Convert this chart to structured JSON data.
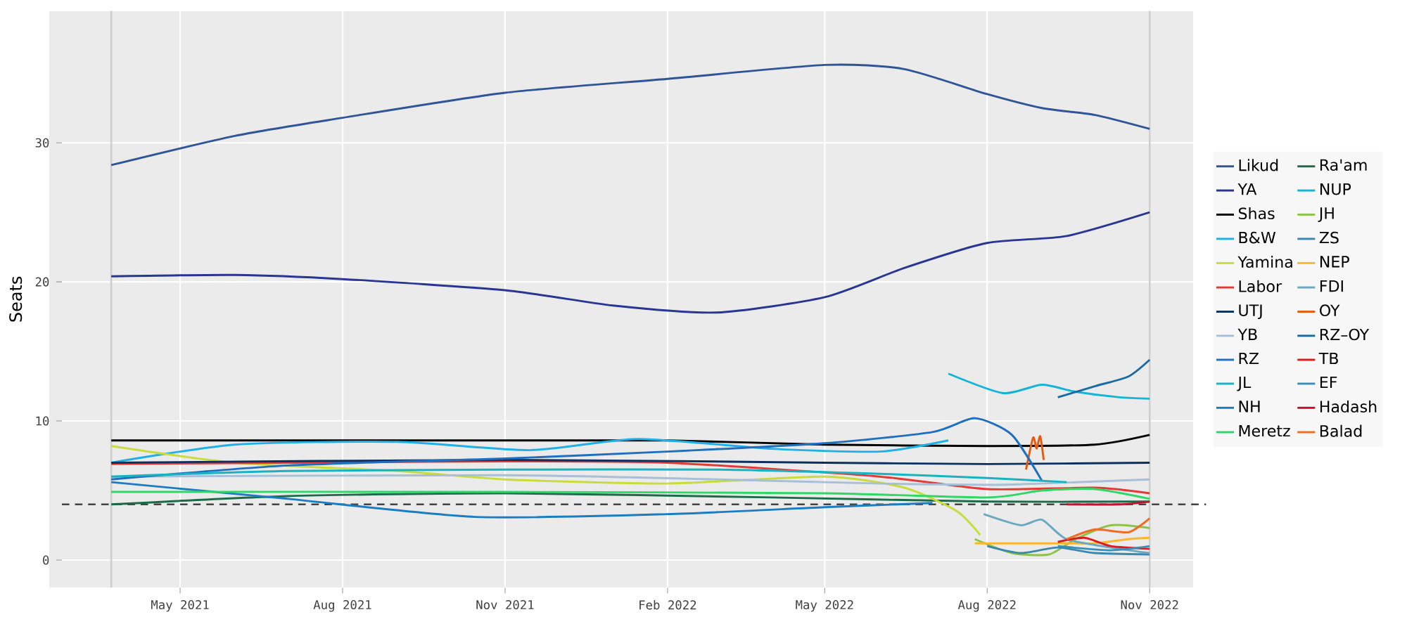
{
  "chart_data": {
    "type": "line",
    "ylabel": "Seats",
    "xlim": [
      "2021-02-23",
      "2022-12-03"
    ],
    "ylim": [
      -2,
      39.5
    ],
    "xticks": [
      {
        "value": "2021-05-01",
        "label": "May 2021"
      },
      {
        "value": "2021-08-01",
        "label": "Aug 2021"
      },
      {
        "value": "2021-11-01",
        "label": "Nov 2021"
      },
      {
        "value": "2022-02-01",
        "label": "Feb 2022"
      },
      {
        "value": "2022-05-01",
        "label": "May 2022"
      },
      {
        "value": "2022-08-01",
        "label": "Aug 2022"
      },
      {
        "value": "2022-11-01",
        "label": "Nov 2022"
      }
    ],
    "yticks": [
      0,
      10,
      20,
      30
    ],
    "grid": true,
    "legend": "right",
    "marker": "none",
    "line_style": "solid",
    "ref_lines": [
      {
        "axis": "y",
        "value": 4,
        "color": "#444444",
        "line_style": "dashed"
      },
      {
        "axis": "x",
        "value": "2021-03-23",
        "color": "#cfcfcf",
        "line_style": "solid"
      },
      {
        "axis": "x",
        "value": "2022-11-01",
        "color": "#cfcfcf",
        "line_style": "solid"
      }
    ],
    "series": [
      {
        "name": "Likud",
        "color": "#2f5597",
        "x": [
          "2021-03-23",
          "2021-06-01",
          "2021-08-01",
          "2021-11-01",
          "2022-02-01",
          "2022-05-01",
          "2022-06-15",
          "2022-08-01",
          "2022-09-01",
          "2022-10-01",
          "2022-11-01"
        ],
        "values": [
          28.4,
          30.5,
          31.8,
          33.6,
          34.6,
          35.6,
          35.3,
          33.5,
          32.5,
          32.0,
          31.0
        ]
      },
      {
        "name": "YA",
        "color": "#283593",
        "x": [
          "2021-03-23",
          "2021-06-01",
          "2021-08-01",
          "2021-11-01",
          "2022-01-01",
          "2022-03-01",
          "2022-05-01",
          "2022-06-15",
          "2022-08-01",
          "2022-09-15",
          "2022-11-01"
        ],
        "values": [
          20.4,
          20.5,
          20.2,
          19.4,
          18.3,
          17.8,
          18.9,
          21.0,
          22.8,
          23.3,
          25.0
        ]
      },
      {
        "name": "Shas",
        "color": "#000000",
        "x": [
          "2021-03-23",
          "2021-11-01",
          "2022-02-01",
          "2022-05-01",
          "2022-08-01",
          "2022-10-01",
          "2022-11-01"
        ],
        "values": [
          8.6,
          8.6,
          8.6,
          8.3,
          8.2,
          8.3,
          9.0
        ]
      },
      {
        "name": "B&W",
        "color": "#1eb0e6",
        "x": [
          "2021-03-23",
          "2021-06-01",
          "2021-09-01",
          "2021-11-15",
          "2022-01-15",
          "2022-04-01",
          "2022-06-01",
          "2022-07-10"
        ],
        "values": [
          7.0,
          8.3,
          8.5,
          7.9,
          8.7,
          8.0,
          7.8,
          8.6
        ]
      },
      {
        "name": "Yamina",
        "color": "#c8dc3c",
        "x": [
          "2021-03-23",
          "2021-06-01",
          "2021-09-01",
          "2021-11-01",
          "2022-02-01",
          "2022-05-01",
          "2022-06-15",
          "2022-07-15",
          "2022-07-28"
        ],
        "values": [
          8.2,
          7.0,
          6.4,
          5.8,
          5.5,
          6.0,
          5.2,
          3.5,
          1.8
        ]
      },
      {
        "name": "Labor",
        "color": "#e53935",
        "x": [
          "2021-03-23",
          "2021-07-01",
          "2021-11-01",
          "2022-02-01",
          "2022-06-01",
          "2022-08-01",
          "2022-10-01",
          "2022-11-01"
        ],
        "values": [
          6.9,
          7.0,
          7.1,
          7.0,
          6.0,
          5.1,
          5.2,
          4.8
        ]
      },
      {
        "name": "UTJ",
        "color": "#0d2f5e",
        "x": [
          "2021-03-23",
          "2021-11-01",
          "2022-05-01",
          "2022-08-01",
          "2022-11-01"
        ],
        "values": [
          7.0,
          7.2,
          7.0,
          6.9,
          7.0
        ]
      },
      {
        "name": "YB",
        "color": "#a8bfd8",
        "x": [
          "2021-03-23",
          "2021-11-01",
          "2022-03-01",
          "2022-06-01",
          "2022-08-01",
          "2022-09-01",
          "2022-11-01"
        ],
        "values": [
          6.0,
          6.1,
          5.8,
          5.5,
          5.4,
          5.5,
          5.8
        ]
      },
      {
        "name": "RZ",
        "color": "#1f6fbf",
        "x": [
          "2021-03-23",
          "2021-07-01",
          "2021-11-01",
          "2022-02-01",
          "2022-05-01",
          "2022-07-01",
          "2022-07-25",
          "2022-08-15",
          "2022-09-01"
        ],
        "values": [
          5.8,
          6.8,
          7.3,
          7.8,
          8.4,
          9.2,
          10.2,
          9.0,
          5.7
        ]
      },
      {
        "name": "JL",
        "color": "#17b3c2",
        "x": [
          "2021-03-23",
          "2021-07-01",
          "2021-11-01",
          "2022-03-01",
          "2022-06-01",
          "2022-08-01",
          "2022-09-15"
        ],
        "values": [
          6.0,
          6.4,
          6.5,
          6.5,
          6.2,
          5.9,
          5.6
        ]
      },
      {
        "name": "NH",
        "color": "#1a7dc1",
        "x": [
          "2021-03-23",
          "2021-07-01",
          "2021-10-15",
          "2022-02-01",
          "2022-05-01",
          "2022-07-01"
        ],
        "values": [
          5.6,
          4.4,
          3.1,
          3.3,
          3.8,
          4.1
        ]
      },
      {
        "name": "Meretz",
        "color": "#2fd866",
        "x": [
          "2021-03-23",
          "2021-11-01",
          "2022-05-01",
          "2022-08-01",
          "2022-09-01",
          "2022-10-01",
          "2022-11-01"
        ],
        "values": [
          4.9,
          4.9,
          4.8,
          4.5,
          5.0,
          5.1,
          4.4
        ]
      },
      {
        "name": "Ra'am",
        "color": "#1b6b4a",
        "x": [
          "2021-03-23",
          "2021-07-01",
          "2021-11-01",
          "2022-04-01",
          "2022-08-01",
          "2022-11-01"
        ],
        "values": [
          4.0,
          4.6,
          4.8,
          4.5,
          4.2,
          4.2
        ]
      },
      {
        "name": "NUP",
        "color": "#12b5d6",
        "x": [
          "2022-07-10",
          "2022-08-10",
          "2022-09-01",
          "2022-09-20",
          "2022-10-15",
          "2022-11-01"
        ],
        "values": [
          13.4,
          12.0,
          12.6,
          12.1,
          11.7,
          11.6
        ]
      },
      {
        "name": "JH",
        "color": "#8bc34a",
        "x": [
          "2022-07-25",
          "2022-08-15",
          "2022-09-05",
          "2022-09-20",
          "2022-10-10",
          "2022-11-01"
        ],
        "values": [
          1.5,
          0.5,
          0.4,
          1.5,
          2.5,
          2.3
        ]
      },
      {
        "name": "ZS",
        "color": "#3c87ad",
        "x": [
          "2022-08-01",
          "2022-08-20",
          "2022-09-10",
          "2022-10-01",
          "2022-11-01"
        ],
        "values": [
          1.0,
          0.5,
          0.9,
          0.5,
          0.4
        ]
      },
      {
        "name": "NEP",
        "color": "#f9b82c",
        "x": [
          "2022-07-25",
          "2022-09-15",
          "2022-10-01",
          "2022-10-20",
          "2022-11-01"
        ],
        "values": [
          1.2,
          1.2,
          1.2,
          1.5,
          1.6
        ]
      },
      {
        "name": "FDI",
        "color": "#6aa9c1",
        "x": [
          "2022-07-30",
          "2022-08-20",
          "2022-09-01",
          "2022-09-15",
          "2022-10-15",
          "2022-11-01"
        ],
        "values": [
          3.3,
          2.5,
          2.9,
          1.5,
          0.8,
          0.5
        ]
      },
      {
        "name": "OY",
        "color": "#e8590c",
        "x": [
          "2022-08-23",
          "2022-08-27",
          "2022-08-29",
          "2022-08-31",
          "2022-09-02"
        ],
        "values": [
          6.5,
          8.8,
          8.0,
          8.9,
          7.2
        ]
      },
      {
        "name": "RZ–OY",
        "color": "#1a6aa3",
        "x": [
          "2022-09-10",
          "2022-10-01",
          "2022-10-20",
          "2022-11-01"
        ],
        "values": [
          11.7,
          12.5,
          13.2,
          14.4
        ]
      },
      {
        "name": "TB",
        "color": "#e0191b",
        "x": [
          "2022-09-10",
          "2022-09-25",
          "2022-10-10",
          "2022-11-01"
        ],
        "values": [
          1.3,
          1.6,
          1.0,
          0.8
        ]
      },
      {
        "name": "EF",
        "color": "#3a8fb7",
        "x": [
          "2022-09-10",
          "2022-10-10",
          "2022-11-01"
        ],
        "values": [
          1.0,
          0.7,
          1.0
        ]
      },
      {
        "name": "Hadash",
        "color": "#c8102e",
        "x": [
          "2022-09-15",
          "2022-10-15",
          "2022-11-01"
        ],
        "values": [
          4.0,
          4.0,
          4.2
        ]
      },
      {
        "name": "Balad",
        "color": "#f26b21",
        "x": [
          "2022-09-15",
          "2022-10-01",
          "2022-10-20",
          "2022-11-01"
        ],
        "values": [
          1.5,
          2.2,
          2.0,
          3.0
        ]
      }
    ]
  }
}
